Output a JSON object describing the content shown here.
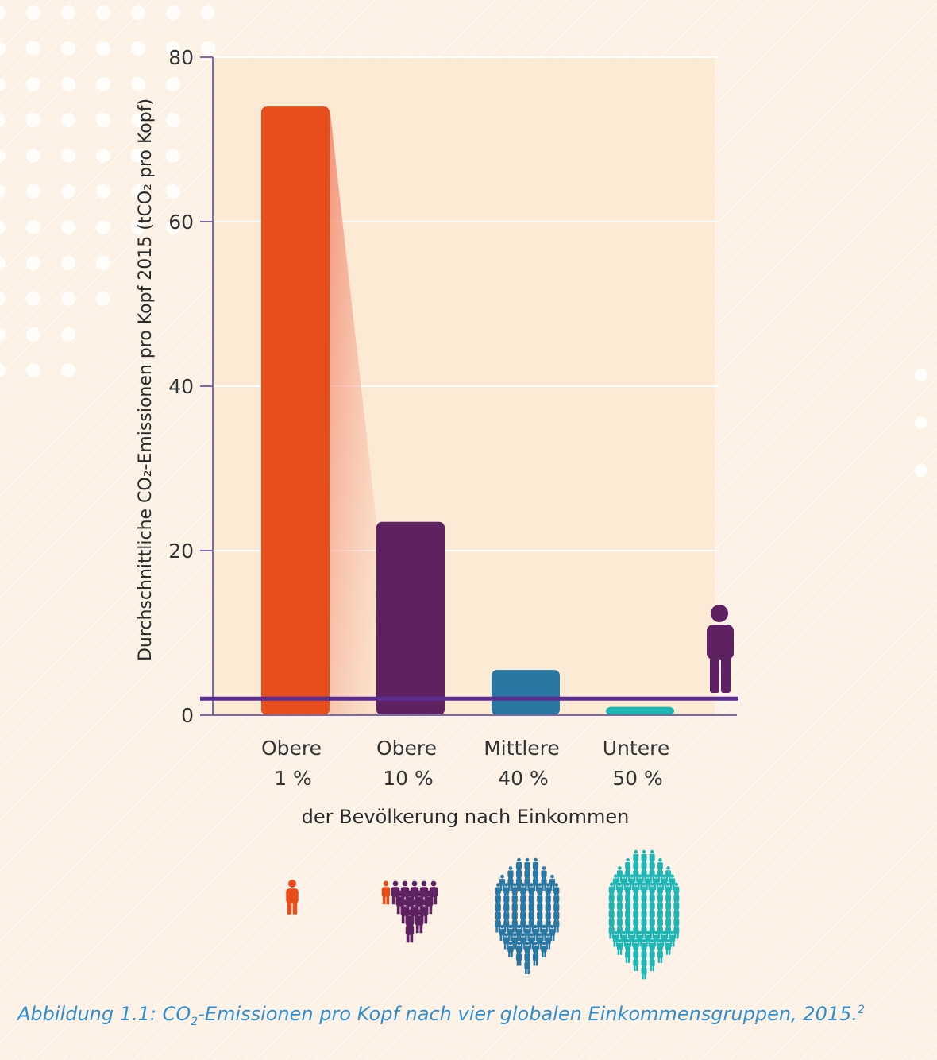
{
  "chart_data": {
    "type": "bar",
    "ylabel": "Durchschnittliche CO₂-Emissionen pro Kopf 2015 (tCO₂ pro Kopf)",
    "xlabel": "der Bevölkerung nach Einkommen",
    "ylim": [
      0,
      80
    ],
    "yticks": [
      "0",
      "20",
      "40",
      "60",
      "80"
    ],
    "categories": [
      {
        "line1": "Obere",
        "line2": "1 %"
      },
      {
        "line1": "Obere",
        "line2": "10 %"
      },
      {
        "line1": "Mittlere",
        "line2": "40 %"
      },
      {
        "line1": "Untere",
        "line2": "50 %"
      }
    ],
    "values": [
      74,
      23.5,
      5.5,
      1
    ],
    "colors": [
      "#e84e1b",
      "#5e2263",
      "#2b77a3",
      "#1fb5b5"
    ],
    "reference_line": {
      "value": 2,
      "color": "#5c2d91"
    },
    "grid": true,
    "icons": [
      "person-icon",
      "person-group-small-icon",
      "person-crowd-medium-icon",
      "person-crowd-large-icon"
    ]
  },
  "caption": {
    "prefix": "Abbildung 1.1: CO",
    "subscript": "2",
    "suffix": "-Emissionen pro Kopf nach vier globalen Einkommensgruppen, 2015.",
    "footnote": "2"
  }
}
